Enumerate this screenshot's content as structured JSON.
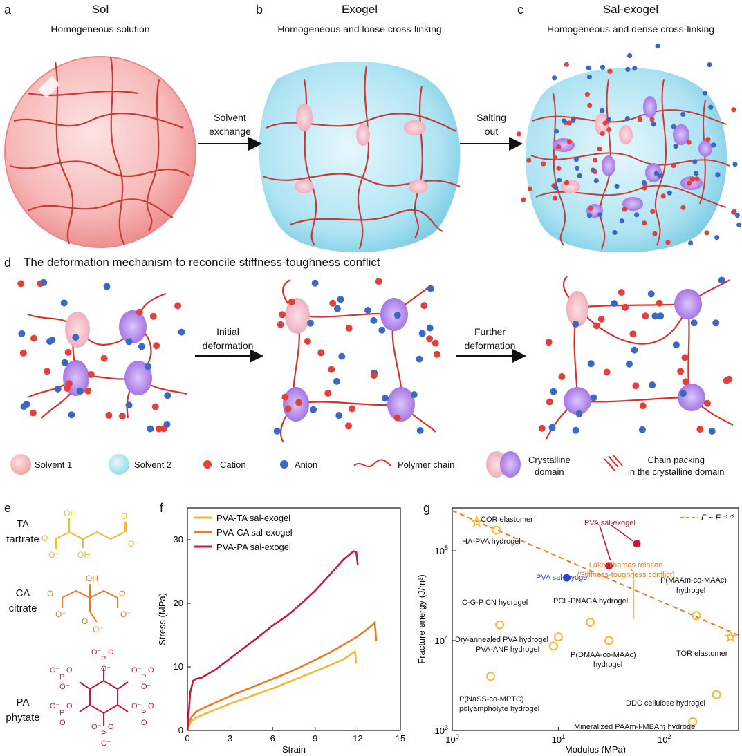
{
  "colors": {
    "polymer": "#d9302a",
    "cation": "#e0413a",
    "anion": "#3b68c4",
    "solvent1": "#f7b8b8",
    "solvent2": "#aee3f2",
    "crystal_pink": "#f2b8c2",
    "crystal_purple": "#a97be6",
    "ta": "#f5b82e",
    "ca": "#f07a22",
    "pa": "#c8183c"
  },
  "panels": {
    "a": {
      "letter": "a",
      "title": "Sol",
      "subtitle": "Homogeneous solution"
    },
    "b": {
      "letter": "b",
      "title": "Exogel",
      "subtitle": "Homogeneous and loose cross-linking"
    },
    "c": {
      "letter": "c",
      "title": "Sal-exogel",
      "subtitle": "Homogeneous and dense cross-linking"
    },
    "arrow_ab": {
      "line1": "Solvent",
      "line2": "exchange"
    },
    "arrow_bc": {
      "line1": "Salting",
      "line2": "out"
    },
    "d": {
      "letter": "d",
      "title": "The deformation mechanism to reconcile stiffness-toughness conflict"
    },
    "arrow_d1": {
      "line1": "Initial",
      "line2": "deformation"
    },
    "arrow_d2": {
      "line1": "Further",
      "line2": "deformation"
    }
  },
  "legend": {
    "solvent1": "Solvent 1",
    "solvent2": "Solvent 2",
    "cation": "Cation",
    "anion": "Anion",
    "polymer": "Polymer chain",
    "crystal_line1": "Crystalline",
    "crystal_line2": "domain",
    "packing_line1": "Chain packing",
    "packing_line2": "in the crystalline domain"
  },
  "panel_e": {
    "letter": "e",
    "ta": {
      "abbr": "TA",
      "name": "tartrate"
    },
    "ca": {
      "abbr": "CA",
      "name": "citrate"
    },
    "pa": {
      "abbr": "PA",
      "name": "phytate"
    },
    "atoms": {
      "o_minus": "O⁻",
      "o": "O",
      "oh": "OH",
      "p": "P"
    }
  },
  "chart_data": [
    {
      "panel": "f",
      "type": "line",
      "xlabel": "Strain",
      "ylabel": "Stress (MPa)",
      "xlim": [
        0,
        15
      ],
      "ylim": [
        0,
        35
      ],
      "xticks": [
        "0",
        "3",
        "6",
        "9",
        "12",
        "15"
      ],
      "yticks": [
        "0",
        "10",
        "20",
        "30"
      ],
      "legend_position": "top-left",
      "series": [
        {
          "name": "PVA-TA sal-exogel",
          "color": "#f5b82e",
          "x": [
            0,
            0.1,
            0.3,
            0.6,
            1,
            2,
            3,
            4,
            5,
            6,
            7,
            8,
            9,
            10,
            11,
            11.8,
            11.9
          ],
          "y": [
            0,
            0.8,
            1.5,
            2.0,
            2.4,
            3.3,
            4.2,
            5.0,
            5.8,
            6.6,
            7.5,
            8.4,
            9.3,
            10.2,
            11.2,
            12.4,
            10.5
          ]
        },
        {
          "name": "PVA-CA sal-exogel",
          "color": "#f07a22",
          "x": [
            0,
            0.1,
            0.3,
            0.6,
            1,
            2,
            3,
            4,
            5,
            6,
            7,
            8,
            9,
            10,
            11,
            12,
            13,
            13.2,
            13.3
          ],
          "y": [
            0,
            1.2,
            2.2,
            2.9,
            3.4,
            4.4,
            5.4,
            6.3,
            7.2,
            8.1,
            9.0,
            10.0,
            11.1,
            12.2,
            13.5,
            14.8,
            16.5,
            17.0,
            14.0
          ]
        },
        {
          "name": "PVA-PA sal-exogel",
          "color": "#c8183c",
          "x": [
            0,
            0.1,
            0.2,
            0.4,
            0.6,
            1,
            2,
            3,
            4,
            5,
            6,
            7,
            8,
            9,
            10,
            11,
            11.7,
            11.9,
            12.0
          ],
          "y": [
            0,
            3,
            6,
            7.8,
            8.1,
            8.3,
            9.6,
            11.3,
            13.0,
            14.7,
            16.5,
            18.0,
            19.9,
            22.0,
            24.4,
            26.9,
            28.2,
            28.0,
            26.0
          ]
        }
      ]
    },
    {
      "panel": "g",
      "type": "scatter",
      "xlabel": "Modulus (MPa)",
      "ylabel": "Fracture energy (J/m²)",
      "xscale": "log",
      "yscale": "log",
      "xlim": [
        1,
        500
      ],
      "ylim": [
        1000,
        300000
      ],
      "xticks": [
        {
          "v": 1,
          "base": "10",
          "exp": "0"
        },
        {
          "v": 10,
          "base": "10",
          "exp": "1"
        },
        {
          "v": 100,
          "base": "10",
          "exp": "2"
        }
      ],
      "yticks": [
        {
          "v": 1000,
          "base": "10",
          "exp": "3"
        },
        {
          "v": 10000,
          "base": "10",
          "exp": "4"
        },
        {
          "v": 100000,
          "base": "10",
          "exp": "5"
        }
      ],
      "fit_line": {
        "label": "Γ ~ E⁻¹ᐟ²",
        "x": [
          1,
          500
        ],
        "y": [
          280000,
          11500
        ]
      },
      "annotations": {
        "lake_thomas_1": "Lake-Thomas relation",
        "lake_thomas_2": "(Stiffness-toughness conflict)"
      },
      "points": [
        {
          "label": "COR elastomer",
          "x": 1.7,
          "y": 210000,
          "marker": "star",
          "color": "#f5b82e"
        },
        {
          "label": "HA-PVA hydrogel",
          "x": 2.6,
          "y": 170000,
          "marker": "circle",
          "color": "#f5b82e"
        },
        {
          "label": "PVA sal-exogel",
          "x": 30,
          "y": 68000,
          "marker": "filled",
          "color": "#c8183c"
        },
        {
          "label": "",
          "x": 55,
          "y": 120000,
          "marker": "filled",
          "color": "#c8183c"
        },
        {
          "label": "PVA sal-cryogel",
          "x": 12,
          "y": 50000,
          "marker": "filled",
          "color": "#2b45c9"
        },
        {
          "label": "C-G-P CN hydrogel",
          "x": 2.8,
          "y": 15000,
          "marker": "circle",
          "color": "#f5b82e"
        },
        {
          "label": "Dry-annealed PVA hydrogel",
          "x": 10,
          "y": 11000,
          "marker": "circle",
          "color": "#f5b82e"
        },
        {
          "label": "PVA-ANF hydrogel",
          "x": 9,
          "y": 8700,
          "marker": "circle",
          "color": "#f5b82e"
        },
        {
          "label": "PCL-PNAGA hydrogel",
          "x": 20,
          "y": 16000,
          "marker": "circle",
          "color": "#f5b82e"
        },
        {
          "label": "P(DMAA-co-MAAc) hydrogel",
          "x": 30,
          "y": 10000,
          "marker": "circle",
          "color": "#f5b82e"
        },
        {
          "label": "P(MAAm-co-MAAc) hydrogel",
          "x": 200,
          "y": 19000,
          "marker": "circle",
          "color": "#f5b82e"
        },
        {
          "label": "TOR elastomer",
          "x": 420,
          "y": 11000,
          "marker": "star",
          "color": "#f5b82e"
        },
        {
          "label": "P(NaSS-co-MPTC) polyampholyte hydrogel",
          "x": 2.3,
          "y": 4000,
          "marker": "circle",
          "color": "#f5b82e"
        },
        {
          "label": "DDC cellulose hydrogel",
          "x": 310,
          "y": 2500,
          "marker": "circle",
          "color": "#f5b82e"
        },
        {
          "label": "Mineralized PAAm-l-MBAm hydrogel",
          "x": 185,
          "y": 1250,
          "marker": "circle",
          "color": "#f5b82e"
        }
      ],
      "text_labels": {
        "cor": "COR elastomer",
        "ha": "HA-PVA hydrogel",
        "exo": "PVA sal-exogel",
        "cryo": "PVA sal-cryogel",
        "cgp": "C-G-P CN hydrogel",
        "dry": "Dry-annealed PVA hydrogel",
        "anf": "PVA-ANF hydrogel",
        "pcl": "PCL-PNAGA hydrogel",
        "dmaa1": "P(DMAA-co-MAAc)",
        "dmaa2": "hydrogel",
        "maam1": "P(MAAm-co-MAAc)",
        "maam2": "hydrogel",
        "tor": "TOR elastomer",
        "nass1": "P(NaSS-co-MPTC)",
        "nass2": "polyampholyte hydrogel",
        "ddc": "DDC cellulose hydrogel",
        "mpaam": "Mineralized PAAm-l-MBAm hydrogel"
      }
    }
  ],
  "panel_f_letter": "f",
  "panel_g_letter": "g"
}
